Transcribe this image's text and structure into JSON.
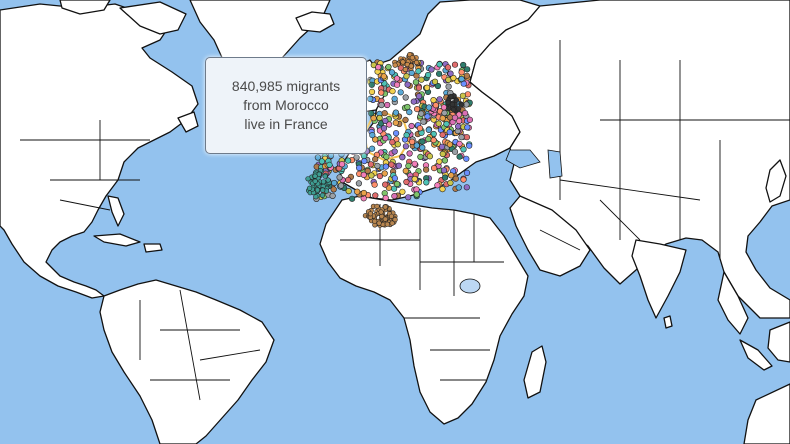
{
  "tooltip": {
    "lines": [
      "840,985 migrants",
      "from Morocco",
      "live in France"
    ]
  },
  "colors": {
    "ocean": "#93c2ee",
    "land": "#ffffff",
    "border": "#111111",
    "highlight_outline": "#f2c14e",
    "lake": "#bcd7f3"
  },
  "dot_palette": [
    "#e06c6c",
    "#e8a24a",
    "#f2d14e",
    "#7ec46a",
    "#5aa9d6",
    "#8f6cc4",
    "#d96fb3",
    "#4ec2b5",
    "#b07a4a",
    "#9aa0a6",
    "#ff8f6b",
    "#6b8fff",
    "#2f7d6d",
    "#f27eb8",
    "#c9c44a"
  ],
  "clusters": [
    {
      "name": "algeria-cluster",
      "color": "#b8864f"
    },
    {
      "name": "atlantic-cluster",
      "color": "#3f9e93"
    },
    {
      "name": "norway-cluster",
      "color": "#c98a4a"
    },
    {
      "name": "baltic-cluster",
      "color": "#333333"
    }
  ]
}
